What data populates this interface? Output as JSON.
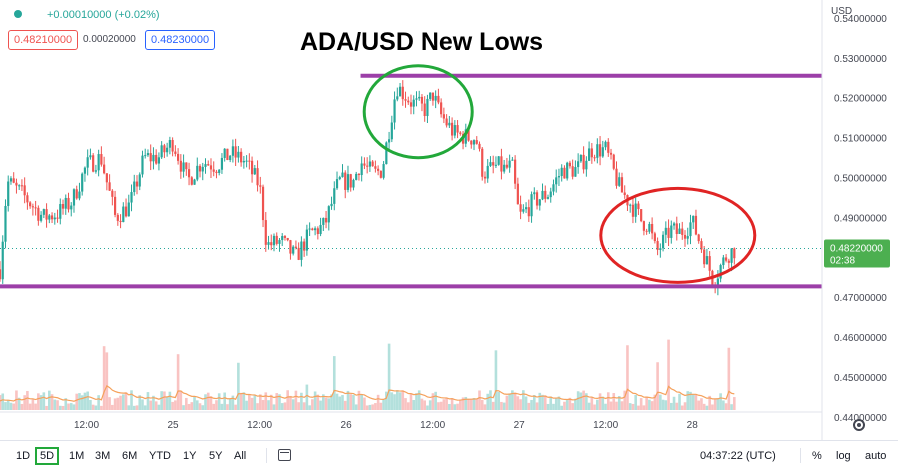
{
  "legend": {
    "change": "+0.00010000 (+0.02%)",
    "bid": "0.48210000",
    "spread": "0.00020000",
    "ask": "0.48230000"
  },
  "title": "ADA/USD New Lows",
  "currency": "USD",
  "last_price": {
    "value": "0.48220000",
    "countdown": "02:38"
  },
  "colors": {
    "up": "#26a69a",
    "down": "#ef5350",
    "level_line": "#9c3fa8",
    "green_circle": "#22a83a",
    "red_circle": "#e02424",
    "last_price_tag": "#4caf50"
  },
  "bottom_bar": {
    "timeframes": [
      "1D",
      "5D",
      "1M",
      "3M",
      "6M",
      "YTD",
      "1Y",
      "5Y",
      "All"
    ],
    "active_timeframe": "5D",
    "clock": "04:37:22 (UTC)",
    "options": [
      "%",
      "log",
      "auto"
    ]
  },
  "chart_data": {
    "type": "candlestick",
    "title": "ADA/USD New Lows",
    "ylim": [
      0.4342,
      0.5445
    ],
    "y_ticks": [
      "0.54000000",
      "0.53000000",
      "0.52000000",
      "0.51000000",
      "0.50000000",
      "0.49000000",
      "0.48000000",
      "0.47000000",
      "0.46000000",
      "0.45000000",
      "0.44000000"
    ],
    "y_tick_values": [
      0.54,
      0.53,
      0.52,
      0.51,
      0.5,
      0.49,
      0.48,
      0.47,
      0.46,
      0.45,
      0.44
    ],
    "x_range": [
      0,
      114
    ],
    "x_ticks": [
      "12:00",
      "25",
      "12:00",
      "26",
      "12:00",
      "27",
      "12:00",
      "28"
    ],
    "x_tick_values": [
      12,
      24,
      36,
      48,
      60,
      72,
      84,
      96
    ],
    "price_path": [
      [
        0,
        0.477
      ],
      [
        1,
        0.499
      ],
      [
        3,
        0.496
      ],
      [
        6,
        0.49
      ],
      [
        8,
        0.491
      ],
      [
        10,
        0.494
      ],
      [
        12,
        0.503
      ],
      [
        14,
        0.505
      ],
      [
        16,
        0.49
      ],
      [
        18,
        0.493
      ],
      [
        20,
        0.505
      ],
      [
        22,
        0.505
      ],
      [
        24,
        0.509
      ],
      [
        26,
        0.499
      ],
      [
        28,
        0.504
      ],
      [
        30,
        0.503
      ],
      [
        32,
        0.506
      ],
      [
        34,
        0.504
      ],
      [
        36,
        0.498
      ],
      [
        37,
        0.483
      ],
      [
        39,
        0.484
      ],
      [
        41,
        0.48
      ],
      [
        43,
        0.486
      ],
      [
        45,
        0.488
      ],
      [
        47,
        0.499
      ],
      [
        49,
        0.499
      ],
      [
        50,
        0.504
      ],
      [
        51,
        0.502
      ],
      [
        52,
        0.501
      ],
      [
        53,
        0.502
      ],
      [
        55,
        0.523
      ],
      [
        57,
        0.519
      ],
      [
        59,
        0.517
      ],
      [
        60,
        0.521
      ],
      [
        61,
        0.516
      ],
      [
        63,
        0.511
      ],
      [
        65,
        0.51
      ],
      [
        66,
        0.51
      ],
      [
        67,
        0.501
      ],
      [
        69,
        0.503
      ],
      [
        70,
        0.502
      ],
      [
        71,
        0.503
      ],
      [
        72,
        0.49
      ],
      [
        74,
        0.494
      ],
      [
        76,
        0.496
      ],
      [
        78,
        0.502
      ],
      [
        80,
        0.502
      ],
      [
        82,
        0.507
      ],
      [
        84,
        0.507
      ],
      [
        86,
        0.497
      ],
      [
        88,
        0.492
      ],
      [
        89,
        0.489
      ],
      [
        90,
        0.488
      ],
      [
        91,
        0.481
      ],
      [
        93,
        0.487
      ],
      [
        94,
        0.486
      ],
      [
        95,
        0.487
      ],
      [
        96,
        0.489
      ],
      [
        97,
        0.484
      ],
      [
        99,
        0.474
      ],
      [
        100,
        0.478
      ],
      [
        101,
        0.481
      ],
      [
        102,
        0.482
      ]
    ],
    "last_price": 0.4822,
    "levels": [
      {
        "value": 0.5255,
        "x_from": 50,
        "x_to": 114
      },
      {
        "value": 0.4727,
        "x_from": 0,
        "x_to": 114
      }
    ],
    "annotations": [
      {
        "shape": "circle",
        "color": "green",
        "x": 58,
        "y": 0.5165
      },
      {
        "shape": "circle",
        "color": "red",
        "x": 94,
        "y": 0.4855
      }
    ],
    "volume": {
      "shown": true,
      "ma_line": true
    }
  }
}
